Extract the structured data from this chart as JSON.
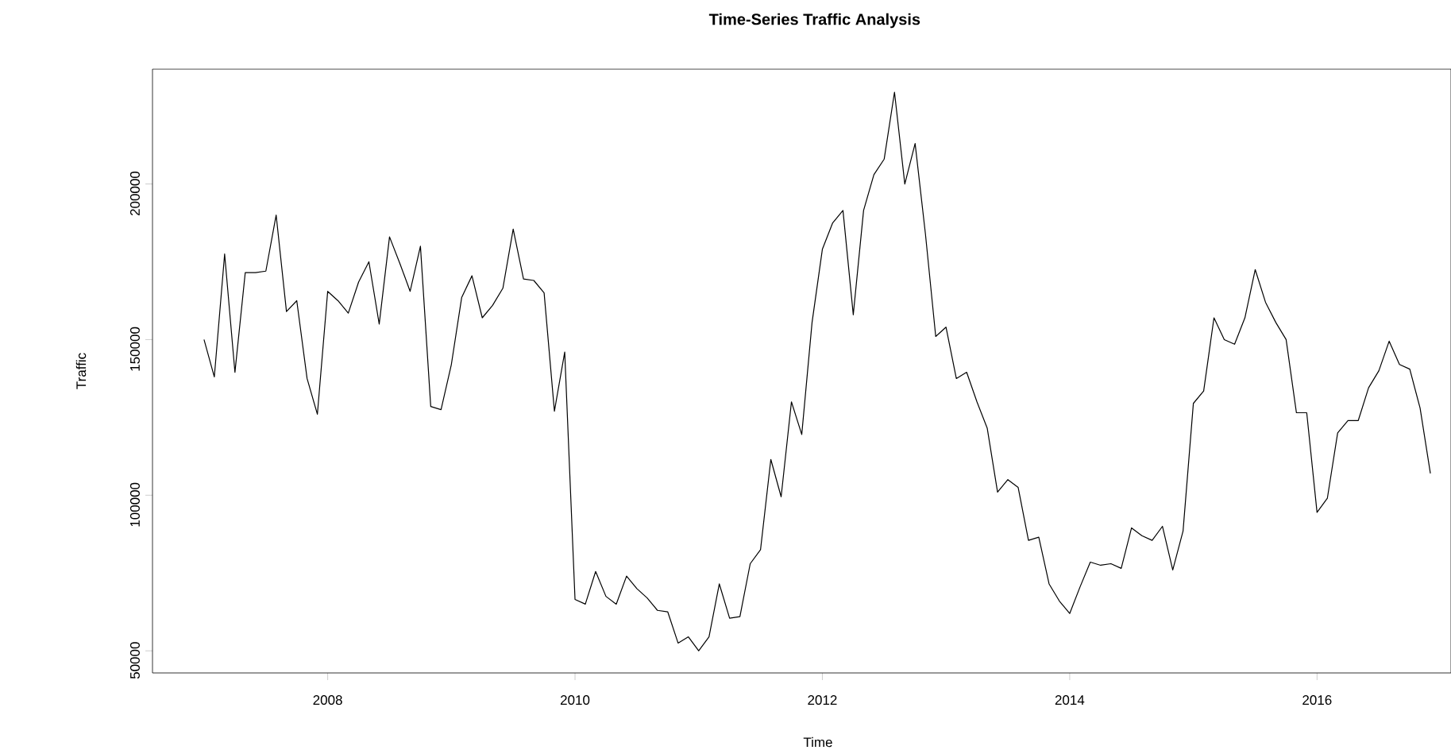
{
  "chart_data": {
    "type": "line",
    "title": "Time-Series Traffic Analysis",
    "xlabel": "Time",
    "ylabel": "Traffic",
    "color": "#000000",
    "x": [
      "2007-01",
      "2007-02",
      "2007-03",
      "2007-04",
      "2007-05",
      "2007-06",
      "2007-07",
      "2007-08",
      "2007-09",
      "2007-10",
      "2007-11",
      "2007-12",
      "2008-01",
      "2008-02",
      "2008-03",
      "2008-04",
      "2008-05",
      "2008-06",
      "2008-07",
      "2008-08",
      "2008-09",
      "2008-10",
      "2008-11",
      "2008-12",
      "2009-01",
      "2009-02",
      "2009-03",
      "2009-04",
      "2009-05",
      "2009-06",
      "2009-07",
      "2009-08",
      "2009-09",
      "2009-10",
      "2009-11",
      "2009-12",
      "2010-01",
      "2010-02",
      "2010-03",
      "2010-04",
      "2010-05",
      "2010-06",
      "2010-07",
      "2010-08",
      "2010-09",
      "2010-10",
      "2010-11",
      "2010-12",
      "2011-01",
      "2011-02",
      "2011-03",
      "2011-04",
      "2011-05",
      "2011-06",
      "2011-07",
      "2011-08",
      "2011-09",
      "2011-10",
      "2011-11",
      "2011-12",
      "2012-01",
      "2012-02",
      "2012-03",
      "2012-04",
      "2012-05",
      "2012-06",
      "2012-07",
      "2012-08",
      "2012-09",
      "2012-10",
      "2012-11",
      "2012-12",
      "2013-01",
      "2013-02",
      "2013-03",
      "2013-04",
      "2013-05",
      "2013-06",
      "2013-07",
      "2013-08",
      "2013-09",
      "2013-10",
      "2013-11",
      "2013-12",
      "2014-01",
      "2014-02",
      "2014-03",
      "2014-04",
      "2014-05",
      "2014-06",
      "2014-07",
      "2014-08",
      "2014-09",
      "2014-10",
      "2014-11",
      "2014-12",
      "2015-01",
      "2015-02",
      "2015-03",
      "2015-04",
      "2015-05",
      "2015-06",
      "2015-07",
      "2015-08",
      "2015-09",
      "2015-10",
      "2015-11",
      "2015-12",
      "2016-01",
      "2016-02",
      "2016-03",
      "2016-04",
      "2016-05",
      "2016-06",
      "2016-07",
      "2016-08",
      "2016-09",
      "2016-10",
      "2016-11",
      "2016-12"
    ],
    "values": [
      150000,
      138000,
      177500,
      139500,
      171500,
      171500,
      172000,
      190000,
      159000,
      162500,
      137500,
      126000,
      165500,
      162500,
      158500,
      168500,
      175000,
      155000,
      183000,
      174500,
      165500,
      180000,
      128500,
      127500,
      142000,
      163500,
      170500,
      157000,
      161000,
      166500,
      185500,
      169500,
      169000,
      165000,
      127000,
      146000,
      66500,
      65000,
      75500,
      67500,
      65000,
      74000,
      70000,
      67000,
      63000,
      62500,
      52500,
      54500,
      50000,
      54500,
      71500,
      60500,
      61000,
      78000,
      82500,
      111500,
      99500,
      130000,
      119500,
      155500,
      179000,
      187500,
      191500,
      158000,
      191500,
      203000,
      208000,
      229500,
      200000,
      213000,
      184000,
      151000,
      154000,
      137500,
      139500,
      130000,
      121500,
      101000,
      105000,
      102500,
      85500,
      86500,
      71500,
      66000,
      62000,
      70500,
      78500,
      77500,
      78000,
      76500,
      89500,
      87000,
      85500,
      90000,
      76000,
      88500,
      129500,
      133500,
      157000,
      150000,
      148500,
      157000,
      172500,
      162000,
      155500,
      150000,
      126500,
      126500,
      94500,
      99000,
      120000,
      124000,
      124000,
      134500,
      140000,
      149500,
      142000,
      140500,
      128000,
      107000
    ],
    "xlim": [
      "2006-08",
      "2017-02"
    ],
    "ylim": [
      42900,
      236900
    ],
    "xticks": [
      "2008",
      "2010",
      "2012",
      "2014",
      "2016"
    ],
    "yticks": [
      50000,
      100000,
      150000,
      200000
    ]
  }
}
